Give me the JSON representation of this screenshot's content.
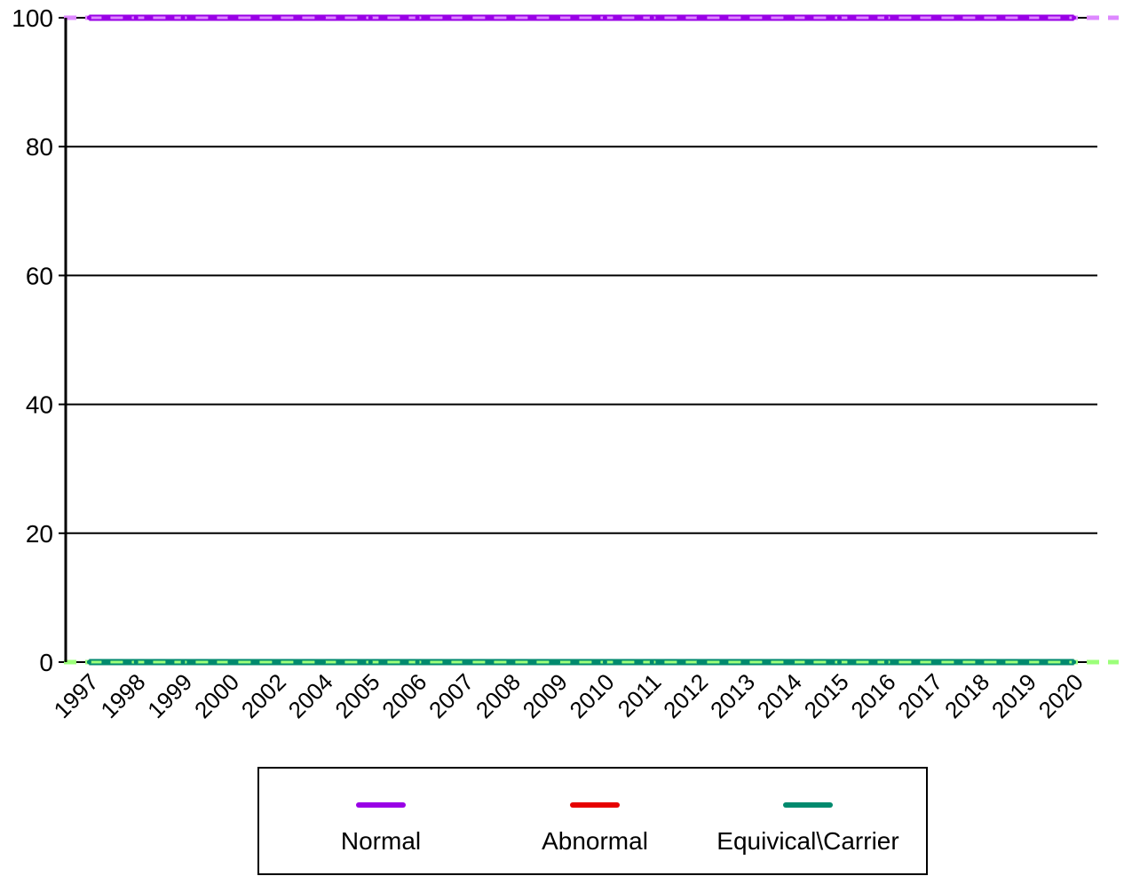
{
  "chart_data": {
    "type": "line",
    "title": "",
    "xlabel": "",
    "ylabel": "",
    "categories": [
      "1997",
      "1998",
      "1999",
      "2000",
      "2002",
      "2004",
      "2005",
      "2006",
      "2007",
      "2008",
      "2009",
      "2010",
      "2011",
      "2012",
      "2013",
      "2014",
      "2015",
      "2016",
      "2017",
      "2018",
      "2019",
      "2020"
    ],
    "ylim": [
      0,
      100
    ],
    "yticks": [
      "0",
      "20",
      "40",
      "60",
      "80",
      "100"
    ],
    "grid": true,
    "legend_placement": "bottom",
    "series": [
      {
        "name": "Normal",
        "color": "#9900e6",
        "highlight": "#dd88ff",
        "values": [
          100,
          100,
          100,
          100,
          100,
          100,
          100,
          100,
          100,
          100,
          100,
          100,
          100,
          100,
          100,
          100,
          100,
          100,
          100,
          100,
          100,
          100
        ]
      },
      {
        "name": "Abnormal",
        "color": "#e60000",
        "highlight": "#ff8080",
        "values": [
          0,
          0,
          0,
          0,
          0,
          0,
          0,
          0,
          0,
          0,
          0,
          0,
          0,
          0,
          0,
          0,
          0,
          0,
          0,
          0,
          0,
          0
        ]
      },
      {
        "name": "Equivical\\Carrier",
        "color": "#008a6e",
        "highlight": "#9cff7a",
        "values": [
          0,
          0,
          0,
          0,
          0,
          0,
          0,
          0,
          0,
          0,
          0,
          0,
          0,
          0,
          0,
          0,
          0,
          0,
          0,
          0,
          0,
          0
        ]
      }
    ]
  }
}
